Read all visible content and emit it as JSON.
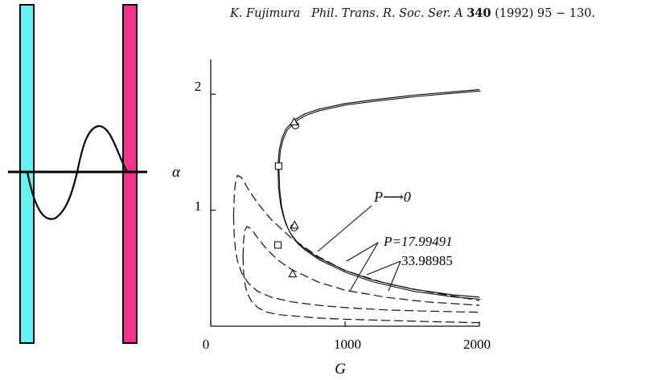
{
  "citation": {
    "author": "K. Fujimura",
    "journal": "Phil. Trans. R. Soc. Ser. A",
    "volume": "340",
    "year_pages": "(1992) 95 − 130."
  },
  "schematic": {
    "left_wall_color": "#66f2f2",
    "right_wall_color": "#f2338c"
  },
  "chart_data": {
    "type": "line",
    "xlabel": "G",
    "ylabel": "α",
    "xlim": [
      0,
      2000
    ],
    "ylim": [
      0,
      2.3
    ],
    "x_ticks": [
      "0",
      "1000",
      "2000"
    ],
    "y_ticks": [
      "1",
      "2"
    ],
    "grid": false,
    "series": [
      {
        "name": "P→0",
        "style": "solid",
        "branches": [
          {
            "x": [
              500,
              505,
              520,
              540,
              560,
              580,
              600,
              640,
              700,
              800,
              1000,
              1200,
              1500,
              1800,
              2000
            ],
            "y": [
              1.38,
              1.2,
              1.05,
              0.95,
              0.88,
              0.83,
              0.79,
              0.73,
              0.67,
              0.59,
              0.48,
              0.4,
              0.32,
              0.27,
              0.25
            ]
          },
          {
            "x": [
              500,
              510,
              530,
              560,
              600,
              640,
              700,
              800,
              1000,
              1200,
              1500,
              1800,
              2000
            ],
            "y": [
              1.38,
              1.52,
              1.62,
              1.7,
              1.75,
              1.79,
              1.83,
              1.87,
              1.92,
              1.95,
              1.99,
              2.02,
              2.04
            ]
          }
        ]
      },
      {
        "name": "P=17.99491",
        "style": "dashed",
        "branches": [
          {
            "x": [
              170,
              175,
              185,
              200,
              230,
              280,
              350,
              450,
              600,
              800,
              1000,
              1300,
              1600,
              2000
            ],
            "y": [
              0.95,
              1.12,
              1.25,
              1.3,
              1.28,
              1.18,
              1.06,
              0.92,
              0.76,
              0.6,
              0.48,
              0.37,
              0.3,
              0.22
            ]
          },
          {
            "x": [
              170,
              175,
              185,
              200,
              230,
              280,
              350,
              450,
              600,
              800,
              1000,
              1300,
              1600,
              2000
            ],
            "y": [
              0.95,
              0.78,
              0.65,
              0.56,
              0.46,
              0.37,
              0.3,
              0.25,
              0.21,
              0.18,
              0.16,
              0.14,
              0.13,
              0.12
            ]
          }
        ]
      },
      {
        "name": "33.98985",
        "style": "dashed",
        "branches": [
          {
            "x": [
              240,
              245,
              255,
              270,
              300,
              350,
              420,
              500,
              600,
              800,
              1000,
              1300,
              1600,
              2000
            ],
            "y": [
              0.6,
              0.74,
              0.83,
              0.86,
              0.84,
              0.76,
              0.66,
              0.57,
              0.49,
              0.38,
              0.31,
              0.25,
              0.21,
              0.18
            ]
          },
          {
            "x": [
              240,
              245,
              255,
              270,
              300,
              350,
              420,
              500,
              600,
              800,
              1000,
              1300,
              1600,
              2000
            ],
            "y": [
              0.6,
              0.46,
              0.36,
              0.29,
              0.22,
              0.16,
              0.12,
              0.1,
              0.09,
              0.07,
              0.06,
              0.05,
              0.04,
              0.03
            ]
          }
        ]
      }
    ],
    "markers": [
      {
        "shape": "circle",
        "x": 630,
        "y": 1.73
      },
      {
        "shape": "triangle",
        "x": 620,
        "y": 1.76
      },
      {
        "shape": "square",
        "x": 505,
        "y": 1.38
      },
      {
        "shape": "circle",
        "x": 620,
        "y": 0.85
      },
      {
        "shape": "triangle",
        "x": 625,
        "y": 0.87
      },
      {
        "shape": "square",
        "x": 500,
        "y": 0.7
      },
      {
        "shape": "triangle",
        "x": 610,
        "y": 0.45
      }
    ],
    "annotations": [
      {
        "id": "ann-p0",
        "label": "P⟶0"
      },
      {
        "id": "ann-p1",
        "label": "P=17.99491"
      },
      {
        "id": "ann-p2",
        "label": "33.98985"
      }
    ]
  }
}
